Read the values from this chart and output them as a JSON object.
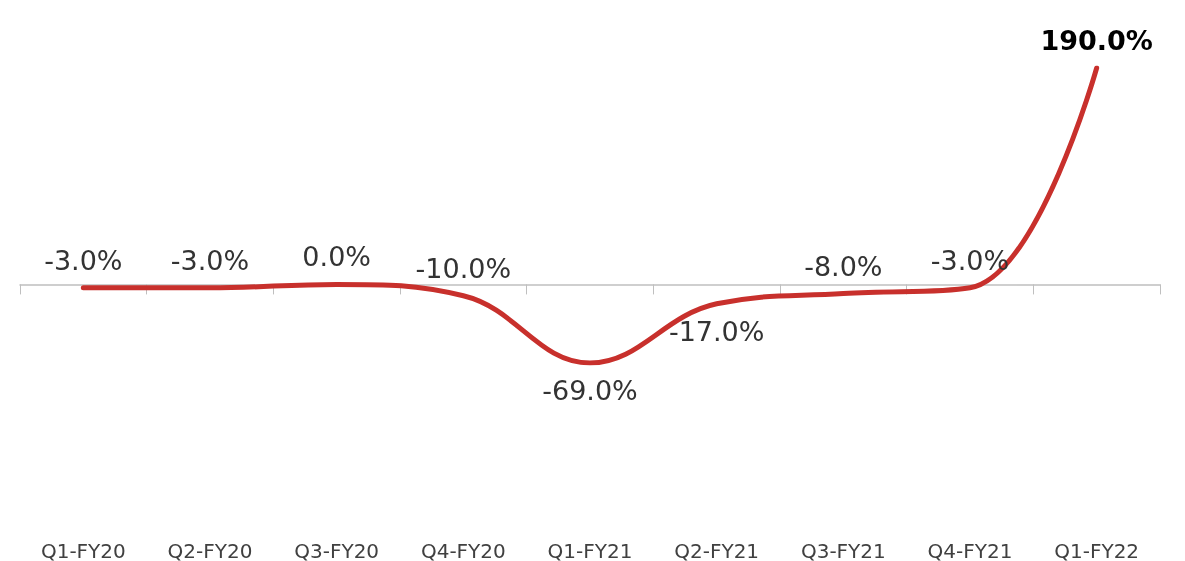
{
  "chart_data": {
    "type": "line",
    "categories": [
      "Q1-FY20",
      "Q2-FY20",
      "Q3-FY20",
      "Q4-FY20",
      "Q1-FY21",
      "Q2-FY21",
      "Q3-FY21",
      "Q4-FY21",
      "Q1-FY22"
    ],
    "series": [
      {
        "color": "#c8302c",
        "values": [
          -3.0,
          -3.0,
          0.0,
          -10.0,
          -69.0,
          -17.0,
          -8.0,
          -3.0,
          190.0
        ],
        "value_labels": [
          "-3.0%",
          "-3.0%",
          "0.0%",
          "-10.0%",
          "-69.0%",
          "-17.0%",
          "-8.0%",
          "-3.0%",
          "190.0%"
        ]
      }
    ],
    "marker": "none",
    "line_style": "solid"
  }
}
